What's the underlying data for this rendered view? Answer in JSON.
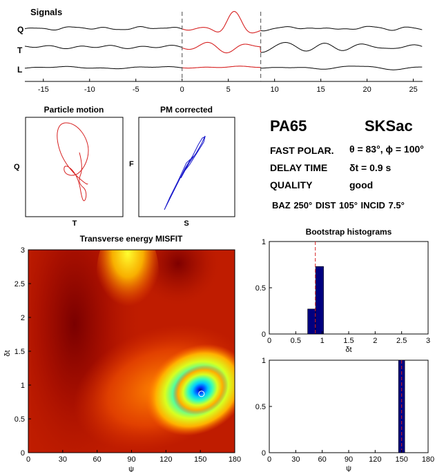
{
  "colors": {
    "signal_raw": "#000000",
    "signal_window": "#d62020",
    "corrected_pm": "#1a1acc",
    "window_marker": "#666666",
    "bar_fill": "#000080",
    "mean_line": "#d62020"
  },
  "signals": {
    "title": "Signals",
    "labels": [
      "Q",
      "T",
      "L"
    ],
    "window": [
      0,
      8.5
    ]
  },
  "particle_motion": {
    "title": "Particle motion",
    "xlabel": "T",
    "ylabel": "Q"
  },
  "pm_corrected": {
    "title": "PM corrected",
    "xlabel": "S",
    "ylabel": "F"
  },
  "result": {
    "station": "PA65",
    "phase": "SKSac",
    "fast_label": "FAST POLAR.",
    "fast_value": "θ =  83°, ϕ =  100°",
    "delay_label": "DELAY TIME",
    "delay_value": "δt = 0.9 s",
    "quality_label": "QUALITY",
    "quality_value": "good",
    "geometry": "BAZ 250°   DIST 105°   INCID 7.5°"
  },
  "misfit": {
    "title": "Transverse energy MISFIT",
    "xlabel": "ψ",
    "ylabel": "δt"
  },
  "bootstrap": {
    "title": "Bootstrap histograms"
  },
  "chart_data": [
    {
      "type": "line",
      "x_ticks": [
        -15,
        -10,
        -5,
        0,
        5,
        10,
        15,
        20,
        25
      ],
      "xlim": [
        -17,
        26
      ],
      "series": [
        {
          "name": "Q"
        },
        {
          "name": "T"
        },
        {
          "name": "L"
        }
      ],
      "markers_x": [
        0,
        8.5
      ]
    },
    {
      "type": "heatmap",
      "title": "Transverse energy MISFIT",
      "xlabel": "ψ",
      "ylabel": "δt",
      "xlim": [
        0,
        180
      ],
      "ylim": [
        0,
        3
      ],
      "x_ticks": [
        0,
        30,
        60,
        90,
        120,
        150,
        180
      ],
      "y_ticks": [
        0,
        0.5,
        1,
        1.5,
        2,
        2.5,
        3
      ],
      "minimum": {
        "x": 151,
        "y": 0.87
      }
    },
    {
      "type": "bar",
      "xlabel": "δt",
      "xlim": [
        0,
        3
      ],
      "ylim": [
        0,
        1
      ],
      "x_ticks": [
        0,
        0.5,
        1,
        1.5,
        2,
        2.5,
        3
      ],
      "y_ticks": [
        0,
        0.5,
        1
      ],
      "bins": [
        {
          "x": 0.8,
          "value": 0.27
        },
        {
          "x": 0.95,
          "value": 0.73
        }
      ],
      "bin_width": 0.15,
      "mean": 0.87
    },
    {
      "type": "bar",
      "xlabel": "ψ",
      "xlim": [
        0,
        180
      ],
      "ylim": [
        0,
        1
      ],
      "x_ticks": [
        0,
        30,
        60,
        90,
        120,
        150,
        180
      ],
      "y_ticks": [
        0,
        0.5,
        1
      ],
      "bins": [
        {
          "x": 150,
          "value": 1.0
        }
      ],
      "bin_width": 7,
      "mean": 150
    }
  ]
}
